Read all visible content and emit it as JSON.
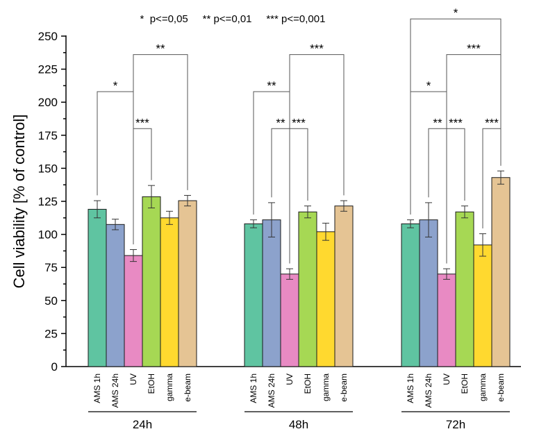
{
  "chart_data": {
    "type": "bar",
    "legend_text": "*  p<=0,05     ** p<=0,01     *** p<=0,001",
    "ylabel": "Cell viability [% of control]",
    "xlabel": "",
    "ylim": [
      0,
      250
    ],
    "yticks": [
      0,
      25,
      50,
      75,
      100,
      125,
      150,
      175,
      200,
      225,
      250
    ],
    "categories": [
      "AMS 1h",
      "AMS 24h",
      "UV",
      "EtOH",
      "gamma",
      "e-beam"
    ],
    "colors": [
      "#5fc4a1",
      "#8ca2cc",
      "#e88ac3",
      "#a6d854",
      "#ffd92f",
      "#e5c494"
    ],
    "groups": [
      {
        "name": "24h",
        "values": [
          119,
          107.5,
          84,
          128.5,
          112.5,
          125.5
        ],
        "errors": [
          6.5,
          4,
          4.5,
          8.5,
          5,
          4
        ],
        "brackets": [
          {
            "from": 0,
            "to": 2,
            "y": 208,
            "label": "*"
          },
          {
            "from": 2,
            "to": 5,
            "y": 236,
            "label": "**"
          },
          {
            "from": 2,
            "to": 3,
            "y": 180,
            "label": "***"
          }
        ]
      },
      {
        "name": "48h",
        "values": [
          108,
          111,
          70,
          117,
          102,
          121.5
        ],
        "errors": [
          3,
          13,
          4,
          4.5,
          6.5,
          4
        ],
        "brackets": [
          {
            "from": 0,
            "to": 2,
            "y": 208,
            "label": "**"
          },
          {
            "from": 2,
            "to": 5,
            "y": 236,
            "label": "***"
          },
          {
            "from": 1,
            "to": 2,
            "y": 180,
            "label": "**"
          },
          {
            "from": 2,
            "to": 3,
            "y": 180,
            "label": "***"
          }
        ]
      },
      {
        "name": "72h",
        "values": [
          108,
          111,
          70,
          117,
          92,
          143
        ],
        "errors": [
          3,
          13,
          4,
          4.5,
          8.5,
          5
        ],
        "brackets": [
          {
            "from": 0,
            "to": 5,
            "y": 263,
            "label": "*"
          },
          {
            "from": 0,
            "to": 2,
            "y": 208,
            "label": "*"
          },
          {
            "from": 2,
            "to": 5,
            "y": 236,
            "label": "***"
          },
          {
            "from": 1,
            "to": 2,
            "y": 180,
            "label": "**"
          },
          {
            "from": 2,
            "to": 3,
            "y": 180,
            "label": "***"
          },
          {
            "from": 4,
            "to": 5,
            "y": 180,
            "label": "***"
          }
        ]
      }
    ]
  }
}
